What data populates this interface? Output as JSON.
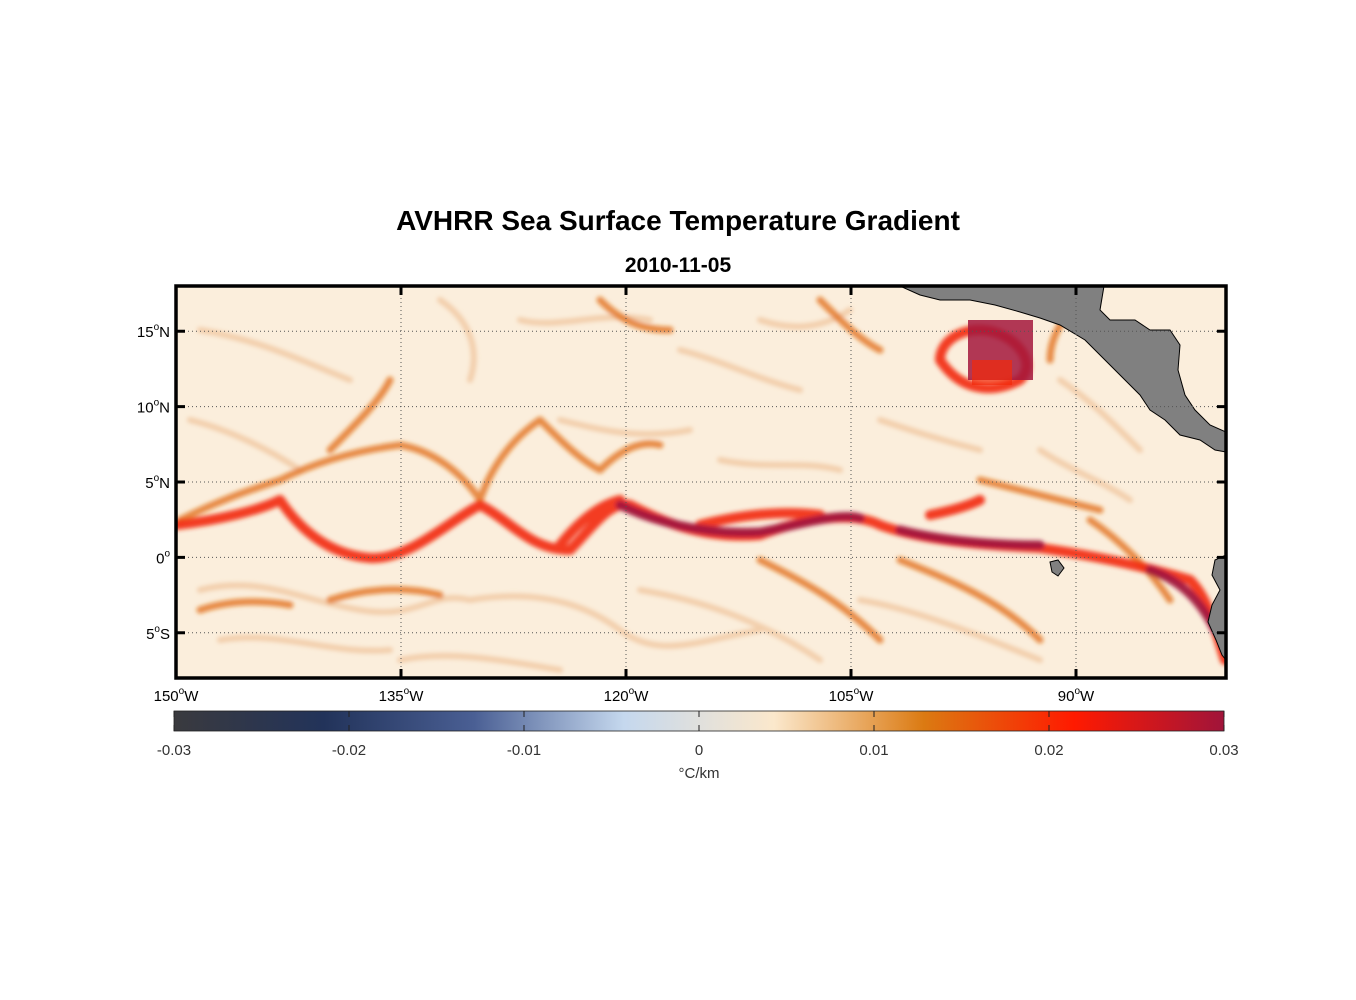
{
  "title": "AVHRR Sea Surface Temperature Gradient",
  "subtitle": "2010-11-05",
  "map": {
    "extent": {
      "lon_min": -150,
      "lon_max": -80,
      "lat_min": -8,
      "lat_max": 18
    },
    "lon_ticks": [
      {
        "value": -150,
        "deg": "150",
        "hemi": "W"
      },
      {
        "value": -135,
        "deg": "135",
        "hemi": "W"
      },
      {
        "value": -120,
        "deg": "120",
        "hemi": "W"
      },
      {
        "value": -105,
        "deg": "105",
        "hemi": "W"
      },
      {
        "value": -90,
        "deg": "90",
        "hemi": "W"
      }
    ],
    "lat_ticks": [
      {
        "value": 15,
        "deg": "15",
        "hemi": "N"
      },
      {
        "value": 10,
        "deg": "10",
        "hemi": "N"
      },
      {
        "value": 5,
        "deg": "5",
        "hemi": "N"
      },
      {
        "value": 0,
        "deg": "0",
        "hemi": ""
      },
      {
        "value": -5,
        "deg": "5",
        "hemi": "S"
      }
    ],
    "grid": "dotted",
    "land_color": "#808080",
    "background_color": "#fbeedc"
  },
  "colorbar": {
    "min": -0.03,
    "max": 0.03,
    "ticks": [
      "-0.03",
      "-0.02",
      "-0.01",
      "0",
      "0.01",
      "0.02",
      "0.03"
    ],
    "label": "°C/km",
    "colors": [
      "#3a3a3e",
      "#22335a",
      "#4a5f94",
      "#c5d8ee",
      "#fbe8cc",
      "#db7a12",
      "#ff1a00",
      "#a0143a"
    ]
  }
}
